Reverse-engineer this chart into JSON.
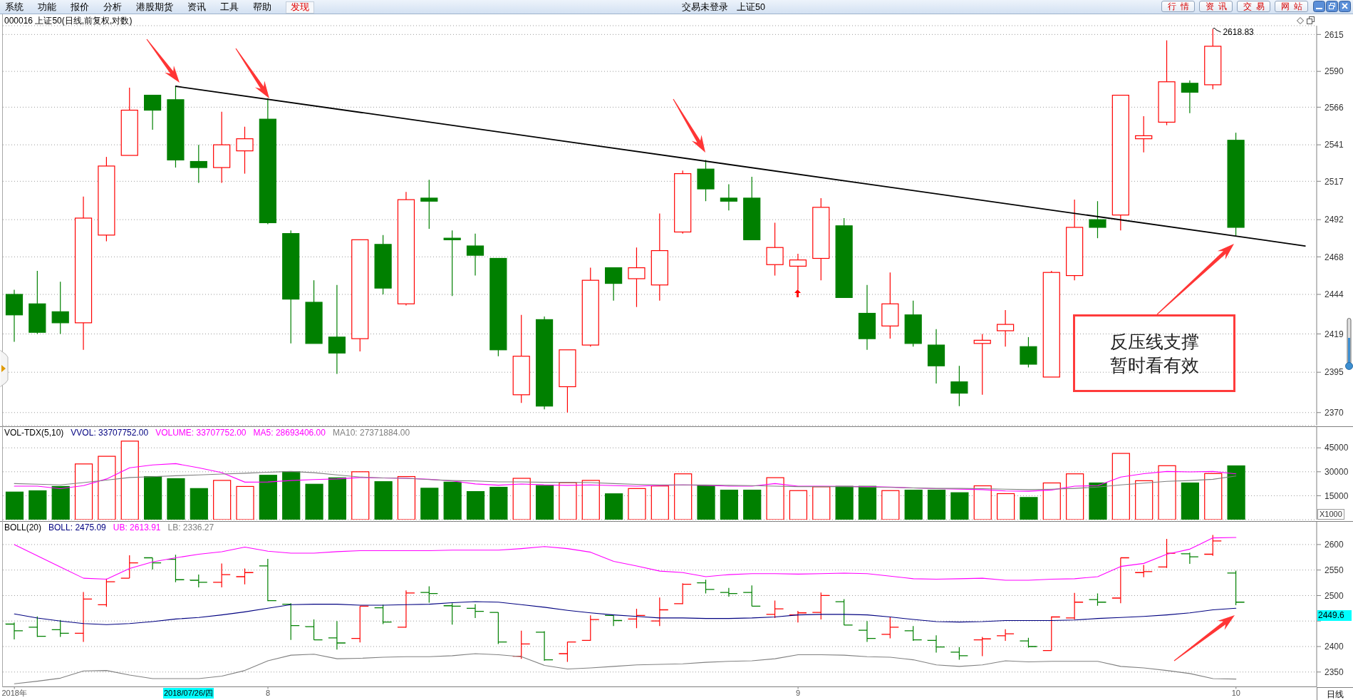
{
  "chart_data": [
    {
      "type": "other",
      "annotations": [
        "系统",
        "功能",
        "报价",
        "分析",
        "港股期货",
        "资讯",
        "工具",
        "帮助",
        "发现",
        "交易未登录",
        "上证50",
        "行情",
        "资讯",
        "交易",
        "网站"
      ]
    },
    {
      "type": "candlestick",
      "title": "000016 上证50(日线,前复权,对数)",
      "categories": [
        null,
        null,
        null,
        null,
        null,
        null,
        null,
        null,
        null,
        null,
        null,
        null,
        null,
        null,
        null,
        null,
        null,
        null,
        null,
        null,
        null,
        null,
        null,
        null,
        null,
        null,
        null,
        null,
        null,
        null,
        null,
        null,
        null,
        null,
        null,
        null,
        null,
        null,
        null,
        null,
        null,
        null,
        null,
        null,
        null,
        null,
        null,
        null,
        null,
        null,
        null,
        null,
        null,
        null,
        null,
        null,
        null
      ],
      "ohlc": [
        [
          2444,
          2447,
          2414,
          2431
        ],
        [
          2438,
          2459,
          2419,
          2420
        ],
        [
          2433,
          2452,
          2419,
          2426
        ],
        [
          2426,
          2507,
          2409,
          2493
        ],
        [
          2482,
          2533,
          2478,
          2527
        ],
        [
          2534,
          2579,
          2534,
          2564
        ],
        [
          2574,
          2574,
          2551,
          2564
        ],
        [
          2571,
          2580,
          2526,
          2531
        ],
        [
          2530,
          2541,
          2516,
          2526
        ],
        [
          2526,
          2563,
          2516,
          2541
        ],
        [
          2537,
          2553,
          2522,
          2545
        ],
        [
          2558,
          2572,
          2489,
          2490
        ],
        [
          2483,
          2485,
          2413,
          2441
        ],
        [
          2439,
          2453,
          2413,
          2413
        ],
        [
          2417,
          2450,
          2394,
          2407
        ],
        [
          2416,
          2479,
          2408,
          2479
        ],
        [
          2476,
          2482,
          2444,
          2448
        ],
        [
          2438,
          2510,
          2437,
          2505
        ],
        [
          2506,
          2518,
          2486,
          2504
        ],
        [
          2480,
          2485,
          2443,
          2479
        ],
        [
          2475,
          2483,
          2456,
          2469
        ],
        [
          2467,
          2467,
          2405,
          2409
        ],
        [
          2381,
          2431,
          2376,
          2405
        ],
        [
          2428,
          2430,
          2372,
          2374
        ],
        [
          2386,
          2409,
          2370,
          2409
        ],
        [
          2412,
          2461,
          2411,
          2453
        ],
        [
          2461,
          2461,
          2440,
          2451
        ],
        [
          2454,
          2474,
          2436,
          2461
        ],
        [
          2450,
          2496,
          2440,
          2472
        ],
        [
          2484,
          2524,
          2483,
          2522
        ],
        [
          2525,
          2531,
          2504,
          2512
        ],
        [
          2506,
          2515,
          2498,
          2504
        ],
        [
          2506,
          2520,
          2479,
          2479
        ],
        [
          2463,
          2490,
          2456,
          2474
        ],
        [
          2462,
          2470,
          2447,
          2466
        ],
        [
          2467,
          2506,
          2453,
          2500
        ],
        [
          2488,
          2493,
          2442,
          2442
        ],
        [
          2432,
          2450,
          2409,
          2416
        ],
        [
          2424,
          2458,
          2416,
          2438
        ],
        [
          2431,
          2440,
          2411,
          2413
        ],
        [
          2412,
          2422,
          2388,
          2399
        ],
        [
          2389,
          2399,
          2374,
          2382
        ],
        [
          2413,
          2419,
          2381,
          2415
        ],
        [
          2421,
          2434,
          2411,
          2425
        ],
        [
          2411,
          2417,
          2398,
          2400
        ],
        [
          2392,
          2459,
          2392,
          2458
        ],
        [
          2456,
          2505,
          2453,
          2487
        ],
        [
          2492,
          2504,
          2480,
          2487
        ],
        [
          2495,
          2574,
          2485,
          2574
        ],
        [
          2545,
          2560,
          2536,
          2547
        ],
        [
          2556,
          2611,
          2554,
          2583
        ],
        [
          2582,
          2584,
          2562,
          2576
        ],
        [
          2581,
          2618.83,
          2578,
          2607
        ],
        [
          2544,
          2549,
          2481,
          2487
        ],
        null,
        null,
        null
      ],
      "colors": [
        "#008000",
        "#008000",
        "#008000",
        "#ff0000",
        "#ff0000",
        "#ff0000",
        "#008000",
        "#008000",
        "#008000",
        "#ff0000",
        "#ff0000",
        "#008000",
        "#008000",
        "#008000",
        "#008000",
        "#ff0000",
        "#008000",
        "#ff0000",
        "#008000",
        "#008000",
        "#008000",
        "#008000",
        "#ff0000",
        "#008000",
        "#ff0000",
        "#ff0000",
        "#008000",
        "#ff0000",
        "#ff0000",
        "#ff0000",
        "#008000",
        "#008000",
        "#008000",
        "#ff0000",
        "#ff0000",
        "#ff0000",
        "#008000",
        "#008000",
        "#ff0000",
        "#008000",
        "#008000",
        "#008000",
        "#ff0000",
        "#ff0000",
        "#008000",
        "#ff0000",
        "#ff0000",
        "#008000",
        "#ff0000",
        "#ff0000",
        "#ff0000",
        "#008000",
        "#ff0000",
        "#008000",
        null,
        null,
        null
      ],
      "series": [
        {
          "type": "line",
          "color": "#000000",
          "values": [
            null,
            null,
            null,
            null,
            null,
            null,
            null,
            2580,
            null,
            null,
            null,
            null,
            null,
            null,
            null,
            null,
            null,
            null,
            null,
            null,
            null,
            null,
            null,
            null,
            null,
            null,
            null,
            null,
            null,
            null,
            null,
            null,
            null,
            null,
            null,
            null,
            null,
            null,
            null,
            null,
            null,
            null,
            null,
            null,
            null,
            null,
            null,
            null,
            null,
            null,
            null,
            null,
            null,
            null,
            null,
            null,
            2475
          ]
        }
      ],
      "ylim": [
        2362,
        2621
      ],
      "yticks": [
        2370,
        2395,
        2419,
        2444,
        2468,
        2492,
        2517,
        2541,
        2566,
        2590,
        2615
      ],
      "log": true,
      "grid": "y",
      "tick_labels": "y",
      "annotations": [
        "2618.83",
        "反压线支撑暂时看有效"
      ]
    },
    {
      "type": "bar",
      "title": "VOL-TDX(5,10)",
      "ylabel": "X1000",
      "categories": [
        null,
        null,
        null,
        null,
        null,
        null,
        null,
        null,
        null,
        null,
        null,
        null,
        null,
        null,
        null,
        null,
        null,
        null,
        null,
        null,
        null,
        null,
        null,
        null,
        null,
        null,
        null,
        null,
        null,
        null,
        null,
        null,
        null,
        null,
        null,
        null,
        null,
        null,
        null,
        null,
        null,
        null,
        null,
        null,
        null,
        null,
        null,
        null,
        null,
        null,
        null,
        null,
        null,
        null,
        null,
        null,
        null
      ],
      "series": [
        {
          "type": "bar",
          "values": [
            17300,
            18100,
            20800,
            34900,
            39700,
            49200,
            27000,
            25700,
            19500,
            24600,
            20800,
            27800,
            30000,
            22200,
            26200,
            30000,
            23800,
            27000,
            19700,
            23500,
            17600,
            20300,
            25900,
            21400,
            23200,
            24600,
            16200,
            19500,
            21100,
            28700,
            21200,
            18500,
            18500,
            26300,
            18200,
            20600,
            20900,
            20900,
            18200,
            18500,
            18500,
            16900,
            21200,
            16300,
            13900,
            23000,
            28700,
            23000,
            41500,
            24400,
            33800,
            23000,
            28900,
            33708,
            null,
            null,
            null
          ],
          "colors": [
            "#008000",
            "#008000",
            "#008000",
            "#ff0000",
            "#ff0000",
            "#ff0000",
            "#008000",
            "#008000",
            "#008000",
            "#ff0000",
            "#ff0000",
            "#008000",
            "#008000",
            "#008000",
            "#008000",
            "#ff0000",
            "#008000",
            "#ff0000",
            "#008000",
            "#008000",
            "#008000",
            "#008000",
            "#ff0000",
            "#008000",
            "#ff0000",
            "#ff0000",
            "#008000",
            "#ff0000",
            "#ff0000",
            "#ff0000",
            "#008000",
            "#008000",
            "#008000",
            "#ff0000",
            "#ff0000",
            "#ff0000",
            "#008000",
            "#008000",
            "#ff0000",
            "#008000",
            "#008000",
            "#008000",
            "#ff0000",
            "#ff0000",
            "#008000",
            "#ff0000",
            "#ff0000",
            "#008000",
            "#ff0000",
            "#ff0000",
            "#ff0000",
            "#008000",
            "#ff0000",
            "#008000",
            null,
            null,
            null
          ]
        },
        {
          "type": "line",
          "name": "MA5: 28693406.00",
          "color": "#ff00ff",
          "values": [
            21000,
            21000,
            19400,
            21300,
            25500,
            32500,
            34300,
            35100,
            32500,
            29500,
            23500,
            23600,
            24500,
            25100,
            25500,
            26400,
            26100,
            25900,
            25300,
            24200,
            22400,
            21600,
            22300,
            21800,
            21500,
            21800,
            21300,
            21000,
            21500,
            21800,
            21500,
            21000,
            21000,
            22600,
            21000,
            21000,
            20900,
            20700,
            20400,
            19900,
            19400,
            19100,
            18800,
            18000,
            17800,
            18600,
            21000,
            21300,
            26700,
            28800,
            30200,
            29900,
            30200,
            28693,
            null,
            null,
            null
          ]
        },
        {
          "type": "line",
          "name": "MA10: 27371884.00",
          "color": "#808080",
          "values": [
            22600,
            22200,
            21800,
            23200,
            24800,
            26400,
            26900,
            27500,
            28000,
            28600,
            29100,
            29700,
            30200,
            29400,
            28000,
            26700,
            26100,
            25900,
            25100,
            24500,
            24200,
            23700,
            23700,
            23400,
            23400,
            23200,
            22600,
            22100,
            21800,
            21800,
            21800,
            21500,
            21300,
            21000,
            20700,
            20700,
            20700,
            20400,
            20200,
            19900,
            19600,
            19600,
            19400,
            19100,
            18800,
            19100,
            19600,
            20400,
            21800,
            22900,
            24000,
            24500,
            25300,
            27372,
            null,
            null,
            null
          ]
        }
      ],
      "ylim": [
        0,
        58500
      ],
      "yticks": [
        15000,
        30000,
        45000
      ],
      "grid": "y",
      "tick_labels": "y",
      "legend": "top left",
      "annotations": [
        "VVOL: 33707752.00",
        "VOLUME: 33707752.00"
      ]
    },
    {
      "type": "candlestick",
      "title": "BOLL(20)",
      "xlabel": "日线",
      "categories": [
        "2018年",
        null,
        null,
        null,
        null,
        null,
        null,
        null,
        null,
        null,
        null,
        "8",
        null,
        null,
        null,
        null,
        null,
        null,
        null,
        null,
        null,
        null,
        null,
        null,
        null,
        null,
        null,
        null,
        null,
        null,
        null,
        null,
        null,
        null,
        "9",
        null,
        null,
        null,
        null,
        null,
        null,
        null,
        null,
        null,
        null,
        null,
        null,
        null,
        null,
        null,
        null,
        null,
        null,
        "10",
        null,
        null,
        null
      ],
      "ohlc": [
        [
          2444,
          2447,
          2414,
          2431
        ],
        [
          2438,
          2459,
          2419,
          2420
        ],
        [
          2433,
          2452,
          2419,
          2426
        ],
        [
          2426,
          2507,
          2409,
          2493
        ],
        [
          2482,
          2533,
          2478,
          2527
        ],
        [
          2534,
          2579,
          2534,
          2564
        ],
        [
          2574,
          2574,
          2551,
          2564
        ],
        [
          2571,
          2580,
          2526,
          2531
        ],
        [
          2530,
          2541,
          2516,
          2526
        ],
        [
          2526,
          2563,
          2516,
          2541
        ],
        [
          2537,
          2553,
          2522,
          2545
        ],
        [
          2558,
          2572,
          2489,
          2490
        ],
        [
          2483,
          2485,
          2413,
          2441
        ],
        [
          2439,
          2453,
          2413,
          2413
        ],
        [
          2417,
          2450,
          2394,
          2407
        ],
        [
          2416,
          2479,
          2408,
          2479
        ],
        [
          2476,
          2482,
          2444,
          2448
        ],
        [
          2438,
          2510,
          2437,
          2505
        ],
        [
          2506,
          2518,
          2486,
          2504
        ],
        [
          2480,
          2485,
          2443,
          2479
        ],
        [
          2475,
          2483,
          2456,
          2469
        ],
        [
          2467,
          2467,
          2405,
          2409
        ],
        [
          2381,
          2431,
          2376,
          2405
        ],
        [
          2428,
          2430,
          2372,
          2374
        ],
        [
          2386,
          2409,
          2370,
          2409
        ],
        [
          2412,
          2461,
          2411,
          2453
        ],
        [
          2461,
          2461,
          2440,
          2451
        ],
        [
          2454,
          2474,
          2436,
          2461
        ],
        [
          2450,
          2496,
          2440,
          2472
        ],
        [
          2484,
          2524,
          2483,
          2522
        ],
        [
          2525,
          2531,
          2504,
          2512
        ],
        [
          2506,
          2515,
          2498,
          2504
        ],
        [
          2506,
          2520,
          2479,
          2479
        ],
        [
          2463,
          2490,
          2456,
          2474
        ],
        [
          2462,
          2470,
          2447,
          2466
        ],
        [
          2467,
          2506,
          2453,
          2500
        ],
        [
          2488,
          2493,
          2442,
          2442
        ],
        [
          2432,
          2450,
          2409,
          2416
        ],
        [
          2424,
          2458,
          2416,
          2438
        ],
        [
          2431,
          2440,
          2411,
          2413
        ],
        [
          2412,
          2422,
          2388,
          2399
        ],
        [
          2389,
          2399,
          2374,
          2382
        ],
        [
          2413,
          2419,
          2381,
          2415
        ],
        [
          2421,
          2434,
          2411,
          2425
        ],
        [
          2411,
          2417,
          2398,
          2400
        ],
        [
          2392,
          2459,
          2392,
          2458
        ],
        [
          2456,
          2505,
          2453,
          2487
        ],
        [
          2492,
          2504,
          2480,
          2487
        ],
        [
          2495,
          2574,
          2485,
          2574
        ],
        [
          2545,
          2560,
          2536,
          2547
        ],
        [
          2556,
          2611,
          2554,
          2583
        ],
        [
          2582,
          2584,
          2562,
          2576
        ],
        [
          2581,
          2618.83,
          2578,
          2607
        ],
        [
          2544,
          2549,
          2481,
          2487
        ],
        null,
        null,
        null
      ],
      "colors": [
        "#008000",
        "#008000",
        "#008000",
        "#ff0000",
        "#ff0000",
        "#ff0000",
        "#008000",
        "#008000",
        "#008000",
        "#ff0000",
        "#ff0000",
        "#008000",
        "#008000",
        "#008000",
        "#008000",
        "#ff0000",
        "#008000",
        "#ff0000",
        "#008000",
        "#008000",
        "#008000",
        "#008000",
        "#ff0000",
        "#008000",
        "#ff0000",
        "#ff0000",
        "#008000",
        "#ff0000",
        "#ff0000",
        "#ff0000",
        "#008000",
        "#008000",
        "#008000",
        "#ff0000",
        "#ff0000",
        "#ff0000",
        "#008000",
        "#008000",
        "#ff0000",
        "#008000",
        "#008000",
        "#008000",
        "#ff0000",
        "#ff0000",
        "#008000",
        "#ff0000",
        "#ff0000",
        "#008000",
        "#ff0000",
        "#ff0000",
        "#ff0000",
        "#008000",
        "#ff0000",
        "#008000",
        null,
        null,
        null
      ],
      "series": [
        {
          "type": "line",
          "name": "BOLL: 2475.09",
          "color": "#000080",
          "values": [
            2464,
            2456,
            2450,
            2445,
            2443,
            2445,
            2449,
            2454,
            2457,
            2462,
            2468,
            2475,
            2482,
            2483,
            2483,
            2481,
            2481,
            2482,
            2483,
            2486,
            2488,
            2487,
            2482,
            2477,
            2471,
            2466,
            2462,
            2459,
            2456,
            2456,
            2455,
            2455,
            2456,
            2458,
            2462,
            2463,
            2463,
            2462,
            2458,
            2453,
            2449,
            2448,
            2449,
            2451,
            2451,
            2451,
            2452,
            2455,
            2457,
            2459,
            2462,
            2466,
            2472,
            2475.09,
            null,
            null,
            null
          ]
        },
        {
          "type": "line",
          "name": "UB: 2613.91",
          "color": "#ff00ff",
          "values": [
            2600,
            2578,
            2556,
            2534,
            2532,
            2553,
            2566,
            2574,
            2581,
            2586,
            2595,
            2587,
            2583,
            2583,
            2586,
            2588,
            2588,
            2588,
            2588,
            2589,
            2589,
            2589,
            2592,
            2596,
            2592,
            2585,
            2567,
            2558,
            2548,
            2545,
            2537,
            2541,
            2543,
            2543,
            2542,
            2543,
            2544,
            2543,
            2538,
            2533,
            2532,
            2533,
            2534,
            2530,
            2530,
            2532,
            2533,
            2537,
            2557,
            2563,
            2581,
            2591,
            2613,
            2613.91,
            null,
            null,
            null
          ]
        },
        {
          "type": "line",
          "name": "LB: 2336.27",
          "color": "#808080",
          "values": [
            2327,
            2332,
            2338,
            2352,
            2353,
            2344,
            2337,
            2337,
            2337,
            2342,
            2353,
            2372,
            2383,
            2385,
            2376,
            2377,
            2379,
            2380,
            2380,
            2382,
            2386,
            2384,
            2380,
            2363,
            2356,
            2358,
            2361,
            2364,
            2365,
            2366,
            2369,
            2371,
            2372,
            2376,
            2384,
            2384,
            2383,
            2380,
            2379,
            2374,
            2364,
            2361,
            2364,
            2372,
            2370,
            2371,
            2371,
            2371,
            2361,
            2358,
            2353,
            2347,
            2337,
            2336.27,
            null,
            null,
            null
          ]
        }
      ],
      "ylim": [
        2321,
        2646
      ],
      "yticks": [
        2350,
        2400,
        {
          "value": 2450,
          "label": null
        },
        2500,
        2550,
        2600
      ],
      "grid": "y",
      "legend": "top left",
      "annotations": [
        "2018/07/26/四",
        "2449.6"
      ]
    }
  ]
}
